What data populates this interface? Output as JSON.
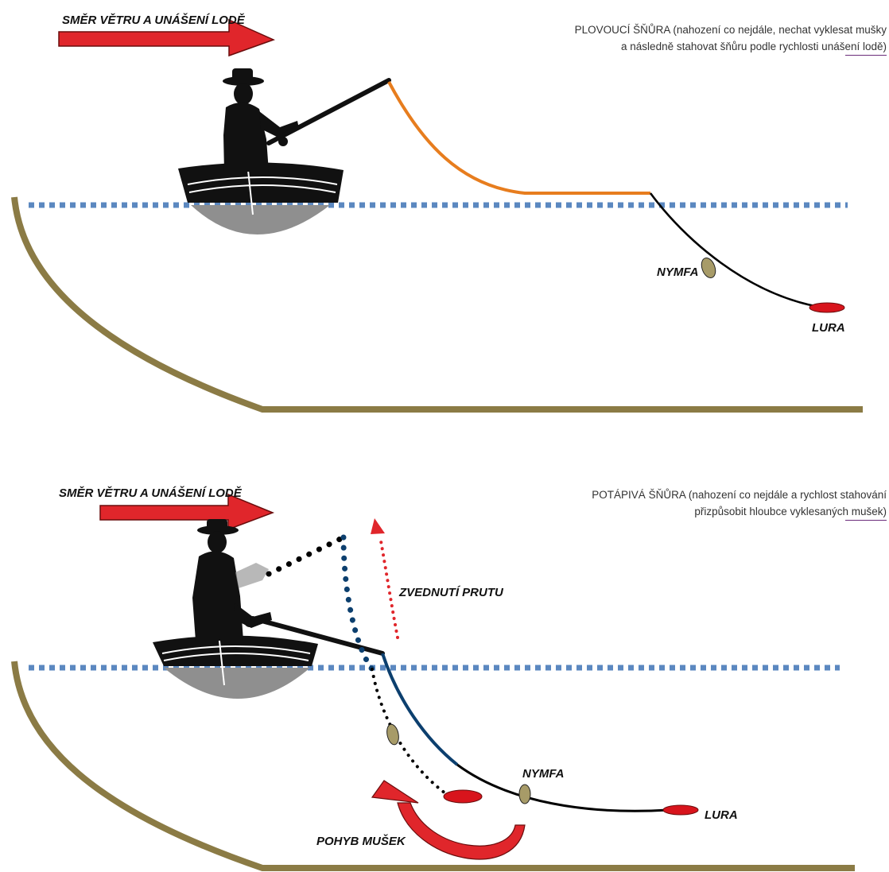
{
  "colors": {
    "water": "#5b88c0",
    "shore": "#8b7b45",
    "arrow": "#e0262b",
    "floating_line": "#e77d1e",
    "sinking_line": "#0c3f6e",
    "fly_nymph": "#a79b68",
    "fly_lure": "#d8141c",
    "hull": "#8f8f8f",
    "silhouette": "#111111"
  },
  "top_panel": {
    "wind_label": "SMĚR VĚTRU A UNÁŠENÍ LODĚ",
    "note_line1": "PLOVOUCÍ ŠŇŮRA (nahození co nejdále, nechat vyklesat mušky",
    "note_line2": "a následně stahovat šňůru podle rychlosti unášení lodě)",
    "nymph_label": "NYMFA",
    "lure_label": "LURA"
  },
  "bottom_panel": {
    "wind_label": "SMĚR VĚTRU A UNÁŠENÍ LODĚ",
    "note_line1": "POTÁPIVÁ ŠŇŮRA (nahození co nejdále a rychlost stahování",
    "note_line2": "přizpůsobit hloubce vyklesaných mušek)",
    "rod_lift_label": "ZVEDNUTÍ PRUTU",
    "nymph_label": "NYMFA",
    "lure_label": "LURA",
    "fly_motion_label": "POHYB MUŠEK"
  }
}
